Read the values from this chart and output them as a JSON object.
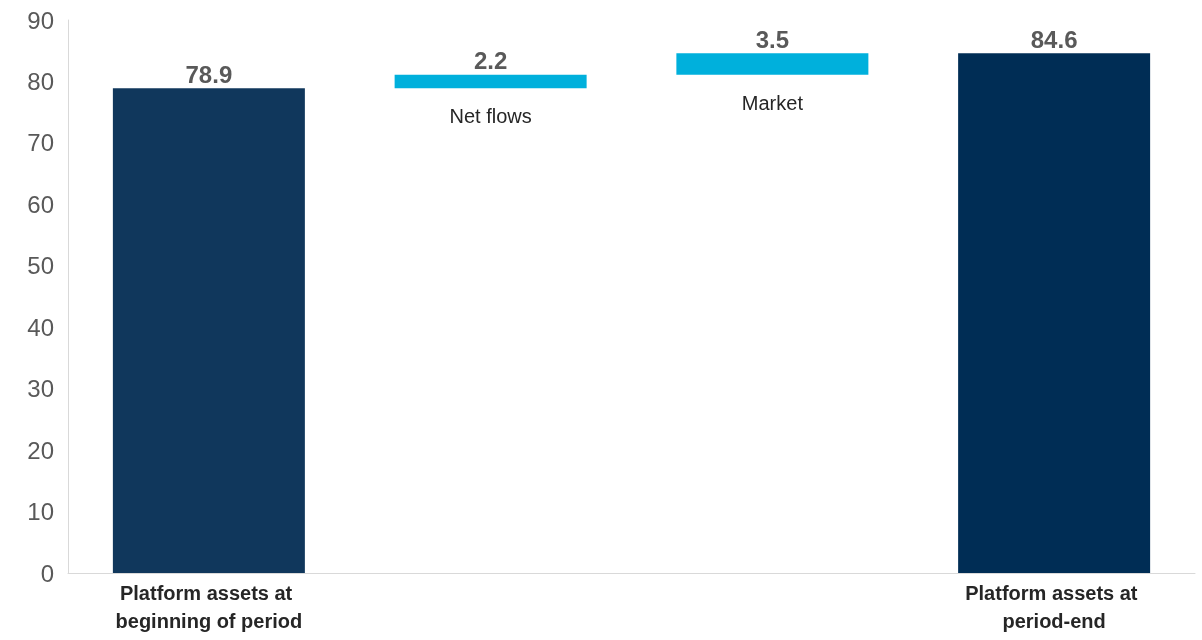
{
  "chart_data": {
    "type": "bar",
    "categories": [
      "Platform assets at beginning of period",
      "Net flows",
      "Market",
      "Platform assets at period-end"
    ],
    "values": [
      78.9,
      2.2,
      3.5,
      84.6
    ],
    "base": [
      0,
      78.9,
      81.1,
      0
    ],
    "colors": [
      "#10375c",
      "#00b0dc",
      "#00b0dc",
      "#002d55"
    ],
    "ylim": [
      0,
      90
    ],
    "yticks": [
      0,
      10,
      20,
      30,
      40,
      50,
      60,
      70,
      80,
      90
    ],
    "grid": false,
    "data_labels": true
  }
}
